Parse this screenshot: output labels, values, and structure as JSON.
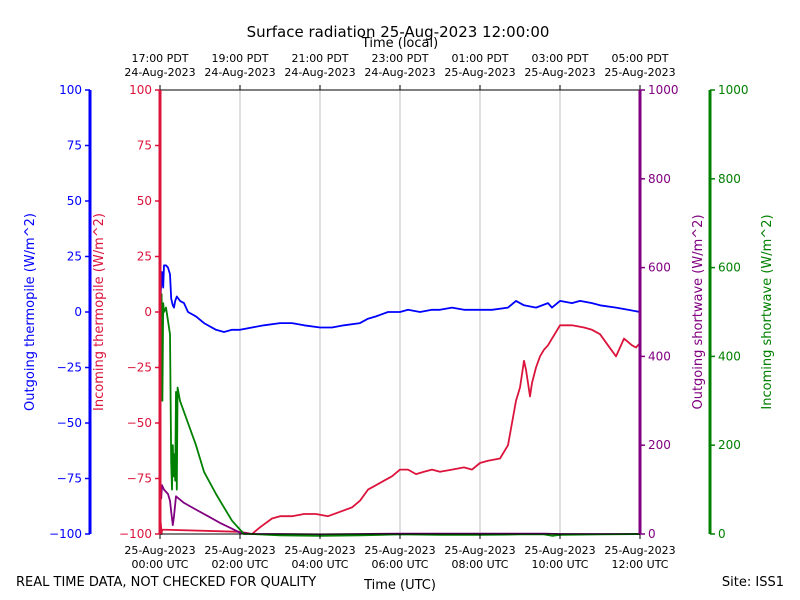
{
  "chart_data": {
    "type": "line",
    "title": "Surface radiation 25-Aug-2023 12:00:00",
    "xlabel": "Time (UTC)",
    "top_xlabel": "Time (local)",
    "x_range_hours_utc": [
      0,
      12
    ],
    "x_ticks": [
      {
        "hour": 0,
        "utc": [
          "25-Aug-2023",
          "00:00 UTC"
        ],
        "local": [
          "17:00 PDT",
          "24-Aug-2023"
        ]
      },
      {
        "hour": 2,
        "utc": [
          "25-Aug-2023",
          "02:00 UTC"
        ],
        "local": [
          "19:00 PDT",
          "24-Aug-2023"
        ]
      },
      {
        "hour": 4,
        "utc": [
          "25-Aug-2023",
          "04:00 UTC"
        ],
        "local": [
          "21:00 PDT",
          "24-Aug-2023"
        ]
      },
      {
        "hour": 6,
        "utc": [
          "25-Aug-2023",
          "06:00 UTC"
        ],
        "local": [
          "23:00 PDT",
          "24-Aug-2023"
        ]
      },
      {
        "hour": 8,
        "utc": [
          "25-Aug-2023",
          "08:00 UTC"
        ],
        "local": [
          "01:00 PDT",
          "25-Aug-2023"
        ]
      },
      {
        "hour": 10,
        "utc": [
          "25-Aug-2023",
          "10:00 UTC"
        ],
        "local": [
          "03:00 PDT",
          "25-Aug-2023"
        ]
      },
      {
        "hour": 12,
        "utc": [
          "25-Aug-2023",
          "12:00 UTC"
        ],
        "local": [
          "05:00 PDT",
          "25-Aug-2023"
        ]
      }
    ],
    "axes": {
      "outgoing_thermopile": {
        "label": "Outgoing thermopile (W/m^2)",
        "color": "#0000ff",
        "range": [
          -100,
          100
        ],
        "ticks": [
          -100,
          -75,
          -50,
          -25,
          0,
          25,
          50,
          75,
          100
        ]
      },
      "incoming_thermopile": {
        "label": "Incoming thermopile (W/m^2)",
        "color": "#dc143c",
        "range": [
          -100,
          100
        ],
        "ticks": [
          -100,
          -75,
          -50,
          -25,
          0,
          25,
          50,
          75,
          100
        ]
      },
      "outgoing_shortwave": {
        "label": "Outgoing shortwave (W/m^2)",
        "color": "#800080",
        "range": [
          0,
          1000
        ],
        "ticks": [
          0,
          200,
          400,
          600,
          800,
          1000
        ]
      },
      "incoming_shortwave": {
        "label": "Incoming shortwave (W/m^2)",
        "color": "#008000",
        "range": [
          0,
          1000
        ],
        "ticks": [
          0,
          200,
          400,
          600,
          800,
          1000
        ]
      }
    },
    "series": [
      {
        "name": "Outgoing thermopile",
        "axis": "outgoing_thermopile",
        "color": "#0000ff",
        "points": [
          [
            0,
            0
          ],
          [
            0.02,
            9
          ],
          [
            0.05,
            18
          ],
          [
            0.08,
            11
          ],
          [
            0.1,
            21
          ],
          [
            0.15,
            21
          ],
          [
            0.2,
            20
          ],
          [
            0.25,
            17
          ],
          [
            0.28,
            6
          ],
          [
            0.32,
            3
          ],
          [
            0.35,
            2
          ],
          [
            0.38,
            5
          ],
          [
            0.42,
            7
          ],
          [
            0.5,
            5
          ],
          [
            0.6,
            4
          ],
          [
            0.7,
            0
          ],
          [
            0.9,
            -2
          ],
          [
            1.1,
            -5
          ],
          [
            1.4,
            -8
          ],
          [
            1.6,
            -9
          ],
          [
            1.8,
            -8
          ],
          [
            2.0,
            -8
          ],
          [
            2.3,
            -7
          ],
          [
            2.6,
            -6
          ],
          [
            3.0,
            -5
          ],
          [
            3.3,
            -5
          ],
          [
            3.6,
            -6
          ],
          [
            4.0,
            -7
          ],
          [
            4.3,
            -7
          ],
          [
            4.6,
            -6
          ],
          [
            5.0,
            -5
          ],
          [
            5.2,
            -3
          ],
          [
            5.4,
            -2
          ],
          [
            5.7,
            0
          ],
          [
            6.0,
            0
          ],
          [
            6.2,
            1
          ],
          [
            6.5,
            0
          ],
          [
            6.8,
            1
          ],
          [
            7.0,
            1
          ],
          [
            7.3,
            2
          ],
          [
            7.6,
            1
          ],
          [
            8.0,
            1
          ],
          [
            8.3,
            1
          ],
          [
            8.7,
            2
          ],
          [
            8.9,
            5
          ],
          [
            9.1,
            3
          ],
          [
            9.4,
            2
          ],
          [
            9.7,
            4
          ],
          [
            9.8,
            2
          ],
          [
            10.0,
            5
          ],
          [
            10.3,
            4
          ],
          [
            10.5,
            5
          ],
          [
            10.8,
            4
          ],
          [
            11.0,
            3
          ],
          [
            11.4,
            2
          ],
          [
            11.7,
            1
          ],
          [
            12.0,
            0
          ]
        ]
      },
      {
        "name": "Incoming thermopile",
        "axis": "incoming_thermopile",
        "color": "#dc143c",
        "points": [
          [
            0,
            -97
          ],
          [
            0.02,
            -95
          ],
          [
            0.04,
            -100
          ],
          [
            0.05,
            -98
          ],
          [
            2.0,
            -99
          ],
          [
            2.3,
            -100
          ],
          [
            2.5,
            -97
          ],
          [
            2.8,
            -93
          ],
          [
            3.0,
            -92
          ],
          [
            3.3,
            -92
          ],
          [
            3.6,
            -91
          ],
          [
            3.9,
            -91
          ],
          [
            4.2,
            -92
          ],
          [
            4.5,
            -90
          ],
          [
            4.8,
            -88
          ],
          [
            5.0,
            -85
          ],
          [
            5.2,
            -80
          ],
          [
            5.4,
            -78
          ],
          [
            5.6,
            -76
          ],
          [
            5.8,
            -74
          ],
          [
            6.0,
            -71
          ],
          [
            6.2,
            -71
          ],
          [
            6.4,
            -73
          ],
          [
            6.6,
            -72
          ],
          [
            6.8,
            -71
          ],
          [
            7.0,
            -72
          ],
          [
            7.3,
            -71
          ],
          [
            7.6,
            -70
          ],
          [
            7.8,
            -71
          ],
          [
            8.0,
            -68
          ],
          [
            8.2,
            -67
          ],
          [
            8.5,
            -66
          ],
          [
            8.7,
            -60
          ],
          [
            8.8,
            -50
          ],
          [
            8.9,
            -40
          ],
          [
            9.0,
            -34
          ],
          [
            9.05,
            -28
          ],
          [
            9.1,
            -22
          ],
          [
            9.15,
            -26
          ],
          [
            9.2,
            -32
          ],
          [
            9.25,
            -38
          ],
          [
            9.3,
            -32
          ],
          [
            9.4,
            -25
          ],
          [
            9.5,
            -20
          ],
          [
            9.6,
            -17
          ],
          [
            9.7,
            -15
          ],
          [
            9.8,
            -12
          ],
          [
            9.9,
            -9
          ],
          [
            10.0,
            -6
          ],
          [
            10.3,
            -6
          ],
          [
            10.6,
            -7
          ],
          [
            10.8,
            -8
          ],
          [
            11.0,
            -10
          ],
          [
            11.2,
            -15
          ],
          [
            11.4,
            -20
          ],
          [
            11.6,
            -12
          ],
          [
            11.8,
            -15
          ],
          [
            11.9,
            -16
          ],
          [
            12.0,
            -14
          ]
        ]
      },
      {
        "name": "Outgoing shortwave",
        "axis": "outgoing_shortwave",
        "color": "#800080",
        "points": [
          [
            0,
            110
          ],
          [
            0.03,
            80
          ],
          [
            0.05,
            110
          ],
          [
            0.1,
            100
          ],
          [
            0.2,
            90
          ],
          [
            0.25,
            75
          ],
          [
            0.28,
            50
          ],
          [
            0.32,
            20
          ],
          [
            0.35,
            40
          ],
          [
            0.4,
            85
          ],
          [
            0.6,
            70
          ],
          [
            0.9,
            55
          ],
          [
            1.2,
            40
          ],
          [
            1.5,
            25
          ],
          [
            1.8,
            12
          ],
          [
            2.0,
            3
          ],
          [
            2.3,
            0
          ],
          [
            3.0,
            0
          ],
          [
            4.0,
            -1
          ],
          [
            5.0,
            0
          ],
          [
            6.0,
            1
          ],
          [
            6.5,
            1
          ],
          [
            7.0,
            1
          ],
          [
            8.0,
            1
          ],
          [
            9.0,
            1
          ],
          [
            9.6,
            1
          ],
          [
            10.0,
            0
          ],
          [
            11.0,
            0
          ],
          [
            12.0,
            0
          ]
        ]
      },
      {
        "name": "Incoming shortwave",
        "axis": "incoming_shortwave",
        "color": "#008000",
        "points": [
          [
            0,
            530
          ],
          [
            0.02,
            480
          ],
          [
            0.04,
            540
          ],
          [
            0.06,
            300
          ],
          [
            0.08,
            520
          ],
          [
            0.1,
            500
          ],
          [
            0.15,
            510
          ],
          [
            0.2,
            480
          ],
          [
            0.25,
            450
          ],
          [
            0.28,
            160
          ],
          [
            0.3,
            100
          ],
          [
            0.32,
            200
          ],
          [
            0.34,
            130
          ],
          [
            0.36,
            180
          ],
          [
            0.38,
            120
          ],
          [
            0.4,
            320
          ],
          [
            0.42,
            100
          ],
          [
            0.44,
            330
          ],
          [
            0.5,
            300
          ],
          [
            0.7,
            250
          ],
          [
            0.9,
            200
          ],
          [
            1.1,
            140
          ],
          [
            1.4,
            90
          ],
          [
            1.6,
            60
          ],
          [
            1.8,
            30
          ],
          [
            2.0,
            10
          ],
          [
            2.1,
            0
          ],
          [
            2.3,
            0
          ],
          [
            3.0,
            -3
          ],
          [
            4.0,
            -4
          ],
          [
            5.0,
            -3
          ],
          [
            6.0,
            -1
          ],
          [
            7.0,
            -2
          ],
          [
            8.0,
            -2
          ],
          [
            9.0,
            -1
          ],
          [
            9.6,
            -1
          ],
          [
            9.8,
            -4
          ],
          [
            10.0,
            -2
          ],
          [
            11.0,
            -1
          ],
          [
            12.0,
            0
          ]
        ]
      }
    ]
  },
  "footer": {
    "left": "REAL TIME DATA, NOT CHECKED FOR QUALITY",
    "right": "Site: ISS1"
  }
}
